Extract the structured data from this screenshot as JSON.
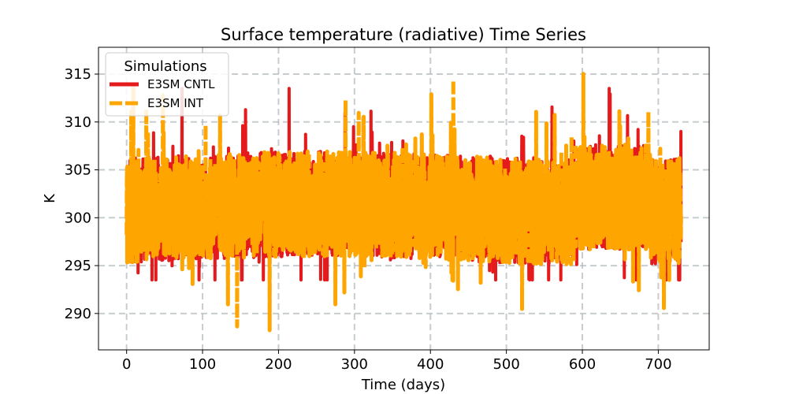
{
  "chart_data": {
    "type": "line",
    "title": "Surface temperature (radiative) Time Series",
    "xlabel": "Time (days)",
    "ylabel": "K",
    "xlim": [
      -37,
      767
    ],
    "ylim": [
      286.2,
      317.8
    ],
    "xticks": [
      0,
      100,
      200,
      300,
      400,
      500,
      600,
      700
    ],
    "yticks": [
      290,
      295,
      300,
      305,
      310,
      315
    ],
    "grid": true,
    "legend": {
      "title": "Simulations",
      "position": "top-left"
    },
    "series": [
      {
        "name": "E3SM CNTL",
        "color": "#e41a1c",
        "style": "solid",
        "approx_range": [
          293.5,
          313.5
        ],
        "x_range": [
          0,
          730
        ]
      },
      {
        "name": "E3SM INT",
        "color": "#ffa500",
        "style": "dashed",
        "approx_range": [
          287.8,
          316.4
        ],
        "x_range": [
          0,
          730
        ]
      }
    ]
  }
}
